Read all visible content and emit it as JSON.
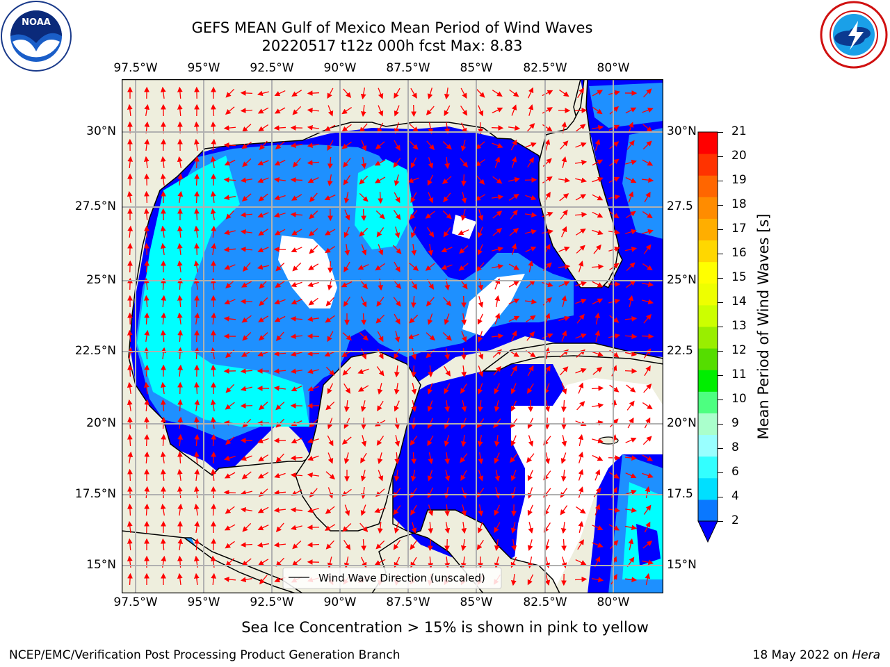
{
  "header": {
    "title_line1": "GEFS MEAN Gulf of Mexico Mean Period of Wind Waves",
    "title_line2": "20220517 t12z 000h fcst   Max: 8.83"
  },
  "logos": {
    "left": {
      "name": "noaa-logo",
      "text": "NOAA",
      "ring_text": "NATIONAL OCEANIC AND ATMOSPHERIC ADMINISTRATION · U.S. DEPARTMENT OF COMMERCE"
    },
    "right": {
      "name": "nws-logo",
      "ring_text": "NATIONAL WEATHER SERVICE"
    }
  },
  "map": {
    "lon_ticks": [
      "97.5°W",
      "95°W",
      "92.5°W",
      "90°W",
      "87.5°W",
      "85°W",
      "82.5°W",
      "80°W"
    ],
    "lat_ticks_left": [
      "30°N",
      "27.5°N",
      "25°N",
      "22.5°N",
      "20°N",
      "17.5°N",
      "15°N"
    ],
    "lat_ticks_right": [
      "30°N",
      "27.5",
      "25°N",
      "22.5",
      "20°N",
      "17.5",
      "15°N"
    ],
    "legend_label": "Wind Wave Direction (unscaled)",
    "colors": {
      "land": "#eeeedd",
      "band_2_4": "#0000ff",
      "band_4_6": "#1e90ff",
      "band_6_8": "#00ffff",
      "arrow": "#ff0000",
      "grid": "#b0b0b0"
    }
  },
  "colorbar": {
    "label": "Mean Period of Wind Waves [s]",
    "ticks": [
      "21",
      "20",
      "19",
      "18",
      "17",
      "16",
      "15",
      "14",
      "13",
      "12",
      "11",
      "10",
      "9",
      "8",
      "6",
      "4",
      "2"
    ],
    "colors_bottom_to_top": [
      "#0a78ff",
      "#00dfff",
      "#33ffff",
      "#99ffff",
      "#aaffcc",
      "#4dff80",
      "#00ee00",
      "#55dd00",
      "#99ee00",
      "#ccff00",
      "#eeff00",
      "#ffff00",
      "#ffd700",
      "#ffae00",
      "#ff8c00",
      "#ff6600",
      "#ff3300",
      "#ff0000"
    ],
    "extend_color": "#0000ff"
  },
  "note": "Sea Ice Concentration > 15% is shown in pink to yellow",
  "footer": {
    "left": "NCEP/EMC/Verification Post Processing Product Generation Branch",
    "date": "18 May 2022 on ",
    "host": "Hera"
  }
}
